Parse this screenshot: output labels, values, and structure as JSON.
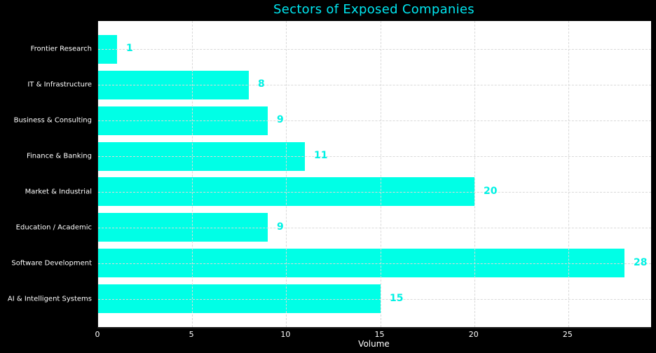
{
  "title": "Sectors of Exposed Companies",
  "chart_data": {
    "type": "bar",
    "orientation": "horizontal",
    "title": "Sectors of Exposed Companies",
    "categories": [
      "Frontier Research",
      "IT & Infrastructure",
      "Business & Consulting",
      "Finance & Banking",
      "Market & Industrial",
      "Education / Academic",
      "Software Development",
      "AI & Intelligent Systems"
    ],
    "values": [
      1,
      8,
      9,
      11,
      20,
      9,
      28,
      15
    ],
    "xlabel": "Volume",
    "ylabel": "",
    "xticks": [
      0,
      5,
      10,
      15,
      20,
      25
    ],
    "xlim": [
      0,
      29.4
    ],
    "grid": true,
    "grid_style": "dashed",
    "legend": "none",
    "colors": {
      "bar": "#00ffe6",
      "title": "#00e6f0",
      "value_label": "#00f2e4",
      "axis_text": "#ffffff",
      "plot_background": "#ffffff",
      "figure_background": "#000000",
      "grid": "#d9d9d9"
    }
  }
}
